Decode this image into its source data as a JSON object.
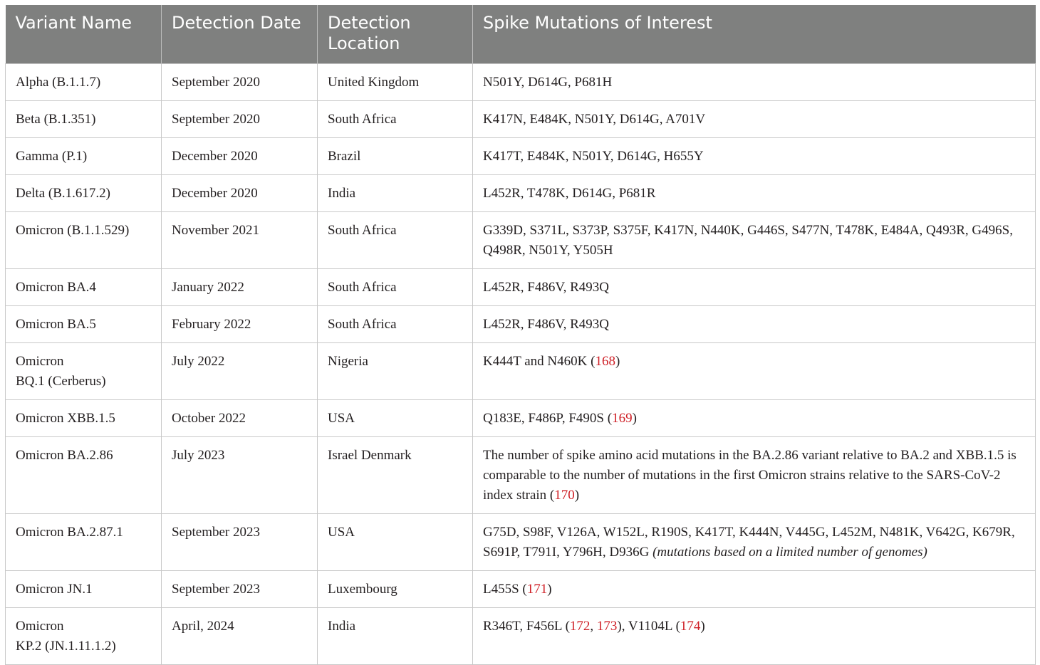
{
  "table": {
    "headers": [
      "Variant Name",
      "Detection Date",
      "Detection Location",
      "Spike Mutations of Interest"
    ],
    "rows": [
      {
        "name": "Alpha (B.1.1.7)",
        "date": "September 2020",
        "location": "United Kingdom",
        "mutations": [
          {
            "text": "N501Y, D614G, P681H"
          }
        ]
      },
      {
        "name": "Beta (B.1.351)",
        "date": "September 2020",
        "location": "South Africa",
        "mutations": [
          {
            "text": "K417N, E484K, N501Y, D614G, A701V"
          }
        ]
      },
      {
        "name": "Gamma (P.1)",
        "date": "December 2020",
        "location": "Brazil",
        "mutations": [
          {
            "text": "K417T, E484K, N501Y, D614G, H655Y"
          }
        ]
      },
      {
        "name": "Delta (B.1.617.2)",
        "date": "December 2020",
        "location": "India",
        "mutations": [
          {
            "text": "L452R, T478K, D614G, P681R"
          }
        ]
      },
      {
        "name": "Omicron (B.1.1.529)",
        "date": "November 2021",
        "location": "South Africa",
        "mutations": [
          {
            "text": "G339D, S371L, S373P, S375F, K417N, N440K, G446S, S477N, T478K, E484A, Q493R, G496S, Q498R, N501Y, Y505H"
          }
        ]
      },
      {
        "name": "Omicron BA.4",
        "date": "January 2022",
        "location": "South Africa",
        "mutations": [
          {
            "text": "L452R, F486V, R493Q"
          }
        ]
      },
      {
        "name": "Omicron BA.5",
        "date": "February 2022",
        "location": "South Africa",
        "mutations": [
          {
            "text": "L452R, F486V, R493Q"
          }
        ]
      },
      {
        "name": "Omicron BQ.1 (Cerberus)",
        "date": "July 2022",
        "location": "Nigeria",
        "mutations": [
          {
            "text": "K444T and N460K ("
          },
          {
            "text": "168",
            "ref": true
          },
          {
            "text": ")"
          }
        ]
      },
      {
        "name": "Omicron XBB.1.5",
        "date": "October 2022",
        "location": "USA",
        "mutations": [
          {
            "text": "Q183E, F486P, F490S ("
          },
          {
            "text": "169",
            "ref": true
          },
          {
            "text": ")"
          }
        ]
      },
      {
        "name": "Omicron BA.2.86",
        "date": "July 2023",
        "location": "Israel Denmark",
        "mutations": [
          {
            "text": "The number of spike amino acid mutations in the BA.2.86 variant relative to BA.2 and XBB.1.5 is comparable to the number of mutations in the first Omicron strains relative to the SARS-CoV-2 index strain ("
          },
          {
            "text": "170",
            "ref": true
          },
          {
            "text": ")"
          }
        ]
      },
      {
        "name": "Omicron BA.2.87.1",
        "date": "September 2023",
        "location": "USA",
        "mutations": [
          {
            "text": "G75D, S98F, V126A, W152L, R190S, K417T, K444N, V445G, L452M, N481K, V642G, K679R, S691P, T791I, Y796H, D936G "
          },
          {
            "text": "(mutations based on a limited number of genomes)",
            "italic": true
          }
        ]
      },
      {
        "name": "Omicron JN.1",
        "date": "September 2023",
        "location": "Luxembourg",
        "mutations": [
          {
            "text": "L455S ("
          },
          {
            "text": "171",
            "ref": true
          },
          {
            "text": ")"
          }
        ]
      },
      {
        "name": "Omicron KP.2 (JN.1.11.1.2)",
        "date": "April, 2024",
        "location": "India",
        "mutations": [
          {
            "text": "R346T, F456L ("
          },
          {
            "text": "172",
            "ref": true
          },
          {
            "text": ", "
          },
          {
            "text": "173",
            "ref": true
          },
          {
            "text": "), V1104L ("
          },
          {
            "text": "174",
            "ref": true
          },
          {
            "text": ")"
          }
        ]
      }
    ],
    "colors": {
      "header_bg": "#7f807f",
      "header_text": "#ffffff",
      "body_text": "#231f20",
      "reference_link": "#cf2027",
      "grid_line": "#c8c8c8"
    }
  }
}
